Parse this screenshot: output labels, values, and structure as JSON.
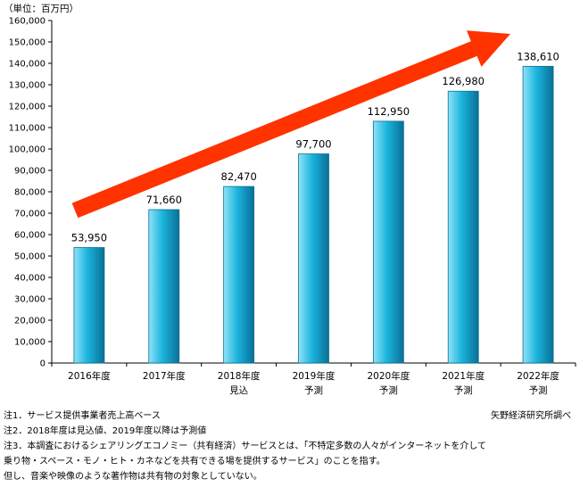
{
  "unit_label": "（単位：百万円）",
  "source": "矢野経済研究所調べ",
  "notes": [
    "注1．サービス提供事業者売上高ベース",
    "注2．2018年度は見込値、2019年度以降は予測値",
    "注3．本調査におけるシェアリングエコノミー（共有経済）サービスとは、「不特定多数の人々がインターネットを介して",
    "乗り物・スペース・モノ・ヒト・カネなどを共有できる場を提供するサービス」のことを指す。",
    "但し、音楽や映像のような著作物は共有物の対象としていない。"
  ],
  "colors": {
    "bar_light": "#8fe3f8",
    "bar_mid": "#1ab4dd",
    "bar_dark": "#0a6f96",
    "arrow": "#ff3300",
    "axis": "#000000"
  },
  "chart_data": {
    "type": "bar",
    "title": "",
    "xlabel": "",
    "ylabel": "",
    "categories": [
      [
        "2016年度"
      ],
      [
        "2017年度"
      ],
      [
        "2018年度",
        "見込"
      ],
      [
        "2019年度",
        "予測"
      ],
      [
        "2020年度",
        "予測"
      ],
      [
        "2021年度",
        "予測"
      ],
      [
        "2022年度",
        "予測"
      ]
    ],
    "values": [
      53950,
      71660,
      82470,
      97700,
      112950,
      126980,
      138610
    ],
    "data_labels": [
      "53,950",
      "71,660",
      "82,470",
      "97,700",
      "112,950",
      "126,980",
      "138,610"
    ],
    "ylim": [
      0,
      160000
    ],
    "yticks": [
      0,
      10000,
      20000,
      30000,
      40000,
      50000,
      60000,
      70000,
      80000,
      90000,
      100000,
      110000,
      120000,
      130000,
      140000,
      150000,
      160000
    ],
    "ytick_labels": [
      "0",
      "10,000",
      "20,000",
      "30,000",
      "40,000",
      "50,000",
      "60,000",
      "70,000",
      "80,000",
      "90,000",
      "100,000",
      "110,000",
      "120,000",
      "130,000",
      "140,000",
      "150,000",
      "160,000"
    ],
    "grid": false,
    "annotation": "upward trend arrow"
  }
}
